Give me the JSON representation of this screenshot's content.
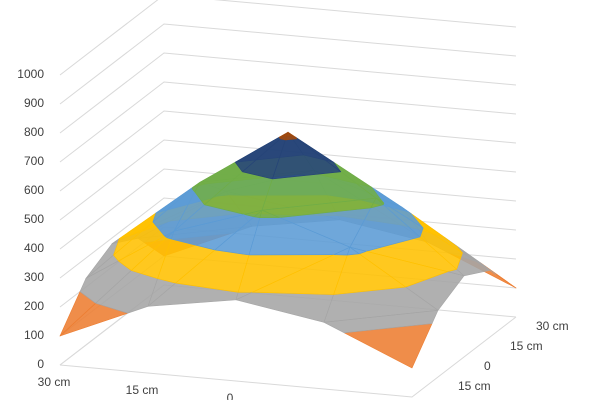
{
  "chart_data": {
    "type": "surface",
    "x_categories": [
      "30 cm",
      "15 cm",
      "0",
      null,
      null
    ],
    "depth_categories": [
      null,
      "15 cm",
      "0",
      "15 cm",
      "30 cm"
    ],
    "z": [
      [
        100,
        230,
        280,
        230,
        100
      ],
      [
        230,
        420,
        520,
        420,
        230
      ],
      [
        280,
        520,
        720,
        520,
        280
      ],
      [
        230,
        420,
        520,
        420,
        230
      ],
      [
        100,
        230,
        280,
        230,
        100
      ]
    ],
    "zlim": [
      0,
      1000
    ],
    "zticks": [
      0,
      100,
      200,
      300,
      400,
      500,
      600,
      700,
      800,
      900,
      1000
    ],
    "band_colors": [
      "#4472c4",
      "#ed7d31",
      "#a5a5a5",
      "#ffc000",
      "#5b9bd5",
      "#70ad47",
      "#264478",
      "#9e480e",
      "#636363",
      "#997300"
    ],
    "grid": true
  }
}
